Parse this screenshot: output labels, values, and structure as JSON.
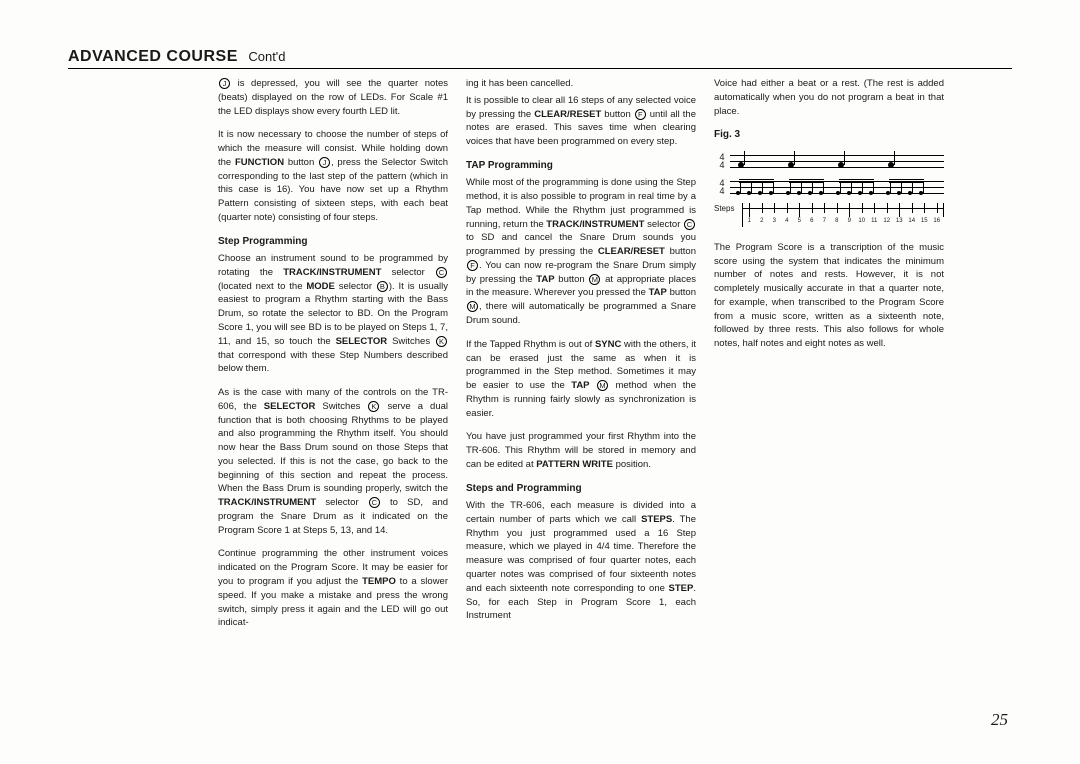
{
  "header": {
    "title": "ADVANCED COURSE",
    "sub": "Cont'd"
  },
  "col1": {
    "p1a": " is depressed, you will see the quarter notes (beats) displayed on the row of LEDs. For Scale #1 the LED displays show every fourth LED lit.",
    "p2a": "It is now necessary to choose the number of steps of which the measure will consist. While holding down the ",
    "p2b": " button ",
    "p2c": ", press the Selector Switch corresponding to the last step of the pattern (which in this case is 16). You have now set up a Rhythm Pattern consisting of sixteen steps, with each beat (quarter note) consisting of four steps.",
    "h1": "Step Programming",
    "p3a": "Choose an instrument sound to be programmed by rotating the ",
    "p3b": " selector ",
    "p3c": " (located next to the ",
    "p3d": " selector ",
    "p3e": "). It is usually easiest to program a Rhythm starting with the Bass Drum, so rotate the selector to BD. On the Program Score 1, you will see BD is to be played on Steps 1, 7, 11, and 15, so touch the ",
    "p3f": " Switches ",
    "p3g": " that correspond with these Step Numbers described below them.",
    "p4a": "As is the case with many of the controls on the TR-606, the ",
    "p4b": " Switches ",
    "p4c": " serve a dual function that is both choosing Rhythms to be played and also programming the Rhythm itself. You should now hear the Bass Drum sound on those Steps that you selected. If this is not the case, go back to the beginning of this section and repeat the process. When the Bass Drum is sounding properly, switch the ",
    "p4d": " selector ",
    "p4e": " to SD, and program the Snare Drum as it indicated on the Program Score 1 at Steps 5, 13, and 14.",
    "p5a": "Continue programming the other instrument voices indicated on the Program Score. It may be easier for you to program if you adjust the ",
    "p5b": " to a slower speed. If you make a mistake and press the wrong switch, simply press it again and the LED will go out indicat-",
    "bold": {
      "function": "FUNCTION",
      "trackinst": "TRACK/INSTRUMENT",
      "mode": "MODE",
      "selector": "SELECTOR",
      "trackinst2": "TRACK/INSTRUMENT",
      "tempo": "TEMPO"
    }
  },
  "col2": {
    "p1": "ing it has been cancelled.",
    "p2a": "It is possible to clear all 16 steps of any selected voice by pressing the ",
    "p2b": " button ",
    "p2c": " until all the notes are erased. This saves time when clearing voices that have been programmed on every step.",
    "h1": "TAP Programming",
    "p3a": "While most of the programming is done using the Step method, it is also possible to program in real time by a Tap method. While the Rhythm just programmed is running, return the ",
    "p3b": " selector ",
    "p3c": " to SD and cancel the Snare Drum sounds you programmed by pressing the ",
    "p3d": " button ",
    "p3e": ". You can now re-program the Snare Drum simply by pressing the ",
    "p3f": " button ",
    "p3g": " at appropriate places in the measure. Wherever you pressed the ",
    "p3h": " button ",
    "p3i": ", there will automatically be programmed a Snare Drum sound.",
    "p4a": "If the Tapped Rhythm is out of ",
    "p4b": " with the others, it can be erased just the same as when it is programmed in the Step method. Sometimes it may be easier to use the ",
    "p4c": " method when the Rhythm is running fairly slowly as synchronization is easier.",
    "p5a": "You have just programmed your first Rhythm into the TR-606. This Rhythm will be stored in memory and can be edited at ",
    "p5b": " position.",
    "h2": "Steps and Programming",
    "p6a": "With the TR-606, each measure is divided into a certain number of parts which we call ",
    "p6b": ". The Rhythm you just programmed used a 16 Step measure, which we played in 4/4 time. Therefore the measure was comprised of four quarter notes, each quarter notes was comprised of four sixteenth notes and each sixteenth note corresponding to one ",
    "p6c": ". So, for each Step in Program Score 1, each Instrument",
    "bold": {
      "clearreset": "CLEAR/RESET",
      "trackinst": "TRACK/INSTRUMENT",
      "clearreset2": "CLEAR/RESET",
      "tap": "TAP",
      "tap2": "TAP",
      "sync": "SYNC",
      "tap3": "TAP",
      "patternwrite": "PATTERN WRITE",
      "steps": "STEPS",
      "step": "STEP"
    }
  },
  "col3": {
    "p1": "Voice had either a beat or a rest. (The rest is added automatically when you do not program a beat in that place.",
    "figlabel": "Fig. 3",
    "timesig": {
      "num": "4",
      "den": "4"
    },
    "stepslabel": "Steps",
    "stepnums": [
      "1",
      "2",
      "3",
      "4",
      "5",
      "6",
      "7",
      "8",
      "9",
      "10",
      "11",
      "12",
      "13",
      "14",
      "15",
      "16"
    ],
    "p2": "The Program Score is a transcription of the music score using the system that indicates the minimum number of notes and rests. However, it is not completely musically accurate in that a quarter note, for example, when transcribed to the Program Score from a music score, written as a sixteenth note, followed by three rests. This also follows for whole notes, half notes and eight notes as well."
  },
  "pagenum": "25"
}
